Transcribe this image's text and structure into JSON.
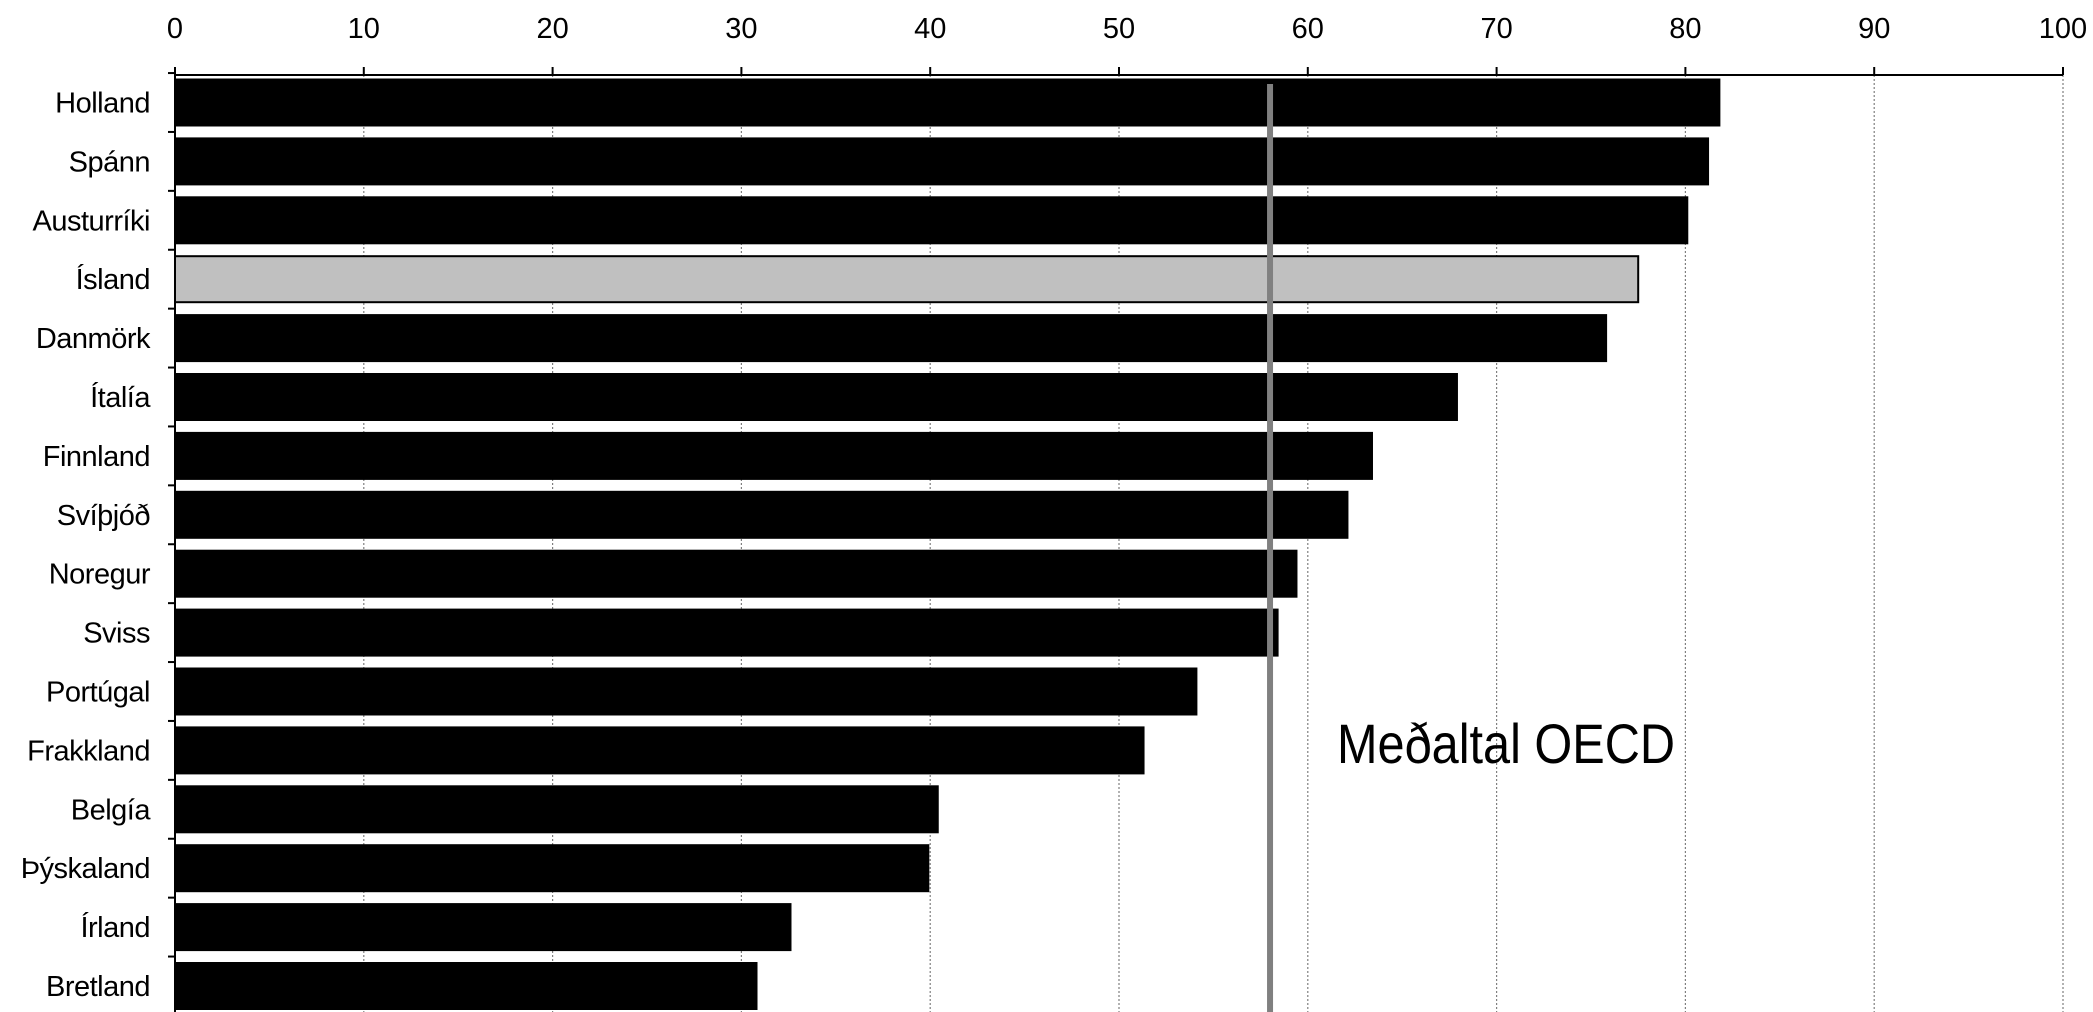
{
  "chart_data": {
    "type": "bar",
    "orientation": "horizontal",
    "categories": [
      "Holland",
      "Spánn",
      "Austurríki",
      "Ísland",
      "Danmörk",
      "Ítalía",
      "Finnland",
      "Svíþjóð",
      "Noregur",
      "Sviss",
      "Portúgal",
      "Frakkland",
      "Belgía",
      "Þýskaland",
      "Írland",
      "Bretland"
    ],
    "values": [
      81.8,
      81.2,
      80.1,
      77.5,
      75.8,
      67.9,
      63.4,
      62.1,
      59.4,
      58.4,
      54.1,
      51.3,
      40.4,
      39.9,
      32.6,
      30.8
    ],
    "xlim": [
      0,
      100
    ],
    "xticks": [
      0,
      10,
      20,
      30,
      40,
      50,
      60,
      70,
      80,
      90,
      100
    ],
    "xtick_labels": [
      "0",
      "10",
      "20",
      "30",
      "40",
      "50",
      "60",
      "70",
      "80",
      "90",
      "100"
    ],
    "x_axis_position": "top",
    "grid": "vertical dotted",
    "bar_color": "#000000",
    "highlight": {
      "category": "Ísland",
      "color": "#c0c0c0"
    },
    "reference_line": {
      "value": 58,
      "label": "Meðaltal OECD",
      "color": "#808080"
    },
    "title": "",
    "xlabel": "",
    "ylabel": ""
  }
}
